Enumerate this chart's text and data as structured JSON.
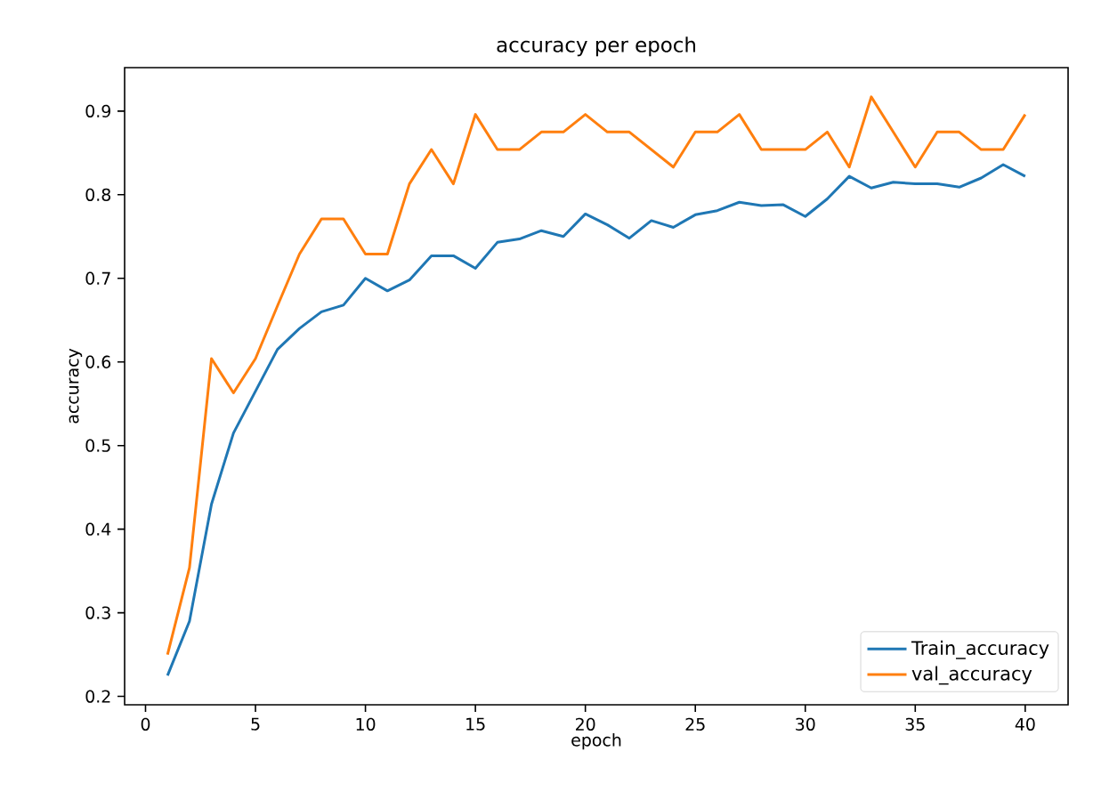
{
  "chart_data": {
    "type": "line",
    "title": "accuracy per epoch",
    "xlabel": "epoch",
    "ylabel": "accuracy",
    "x": [
      1,
      2,
      3,
      4,
      5,
      6,
      7,
      8,
      9,
      10,
      11,
      12,
      13,
      14,
      15,
      16,
      17,
      18,
      19,
      20,
      21,
      22,
      23,
      24,
      25,
      26,
      27,
      28,
      29,
      30,
      31,
      32,
      33,
      34,
      35,
      36,
      37,
      38,
      39,
      40
    ],
    "series": [
      {
        "name": "Train_accuracy",
        "color": "#1f77b4",
        "values": [
          0.225,
          0.29,
          0.43,
          0.515,
          0.565,
          0.615,
          0.64,
          0.66,
          0.668,
          0.7,
          0.685,
          0.698,
          0.727,
          0.727,
          0.712,
          0.743,
          0.747,
          0.757,
          0.75,
          0.777,
          0.764,
          0.748,
          0.769,
          0.761,
          0.776,
          0.781,
          0.791,
          0.787,
          0.788,
          0.774,
          0.795,
          0.822,
          0.808,
          0.815,
          0.813,
          0.813,
          0.809,
          0.82,
          0.836,
          0.822
        ]
      },
      {
        "name": "val_accuracy",
        "color": "#ff7f0e",
        "values": [
          0.25,
          0.354,
          0.604,
          0.563,
          0.604,
          0.667,
          0.729,
          0.771,
          0.771,
          0.729,
          0.729,
          0.813,
          0.854,
          0.813,
          0.896,
          0.854,
          0.854,
          0.875,
          0.875,
          0.896,
          0.875,
          0.875,
          0.854,
          0.833,
          0.875,
          0.875,
          0.896,
          0.854,
          0.854,
          0.854,
          0.875,
          0.833,
          0.917,
          0.875,
          0.833,
          0.875,
          0.875,
          0.854,
          0.854,
          0.896
        ]
      }
    ],
    "xlim": [
      -0.95,
      41.95
    ],
    "ylim": [
      0.19,
      0.952
    ],
    "xticks": [
      0,
      5,
      10,
      15,
      20,
      25,
      30,
      35,
      40
    ],
    "yticks": [
      0.2,
      0.3,
      0.4,
      0.5,
      0.6,
      0.7,
      0.8,
      0.9
    ],
    "grid": false,
    "legend": "bottom right",
    "marker": "none",
    "line_style": "solid"
  }
}
